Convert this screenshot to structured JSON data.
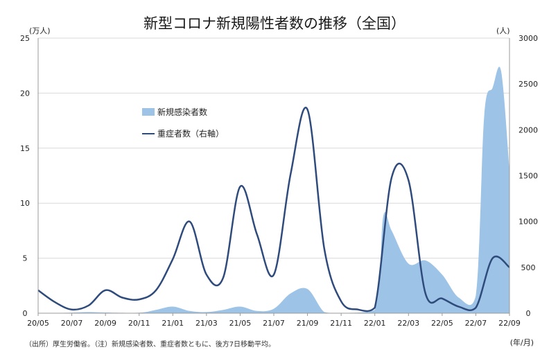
{
  "chart_data": {
    "type": "area",
    "title": "新型コロナ新規陽性者数の推移（全国）",
    "left_unit": "(万人)",
    "right_unit": "(人)",
    "x_unit": "(年/月)",
    "x_tick_labels": [
      "20/05",
      "20/07",
      "20/09",
      "20/11",
      "21/01",
      "21/03",
      "21/05",
      "21/07",
      "21/09",
      "21/11",
      "22/01",
      "22/03",
      "22/05",
      "22/07",
      "22/09"
    ],
    "y_left_ticks": [
      0,
      5,
      10,
      15,
      20,
      25
    ],
    "y_right_ticks": [
      0,
      500,
      1000,
      1500,
      2000,
      2500,
      3000
    ],
    "ylim_left": [
      0,
      25
    ],
    "ylim_right": [
      0,
      3000
    ],
    "grid": true,
    "colors": {
      "area": "#9dc3e6",
      "line": "#2f4b7c"
    },
    "series": [
      {
        "name": "新規感染者数",
        "axis": "left",
        "x": [
          "20/05",
          "20/07",
          "20/08",
          "20/09",
          "20/11",
          "20/12",
          "21/01",
          "21/02",
          "21/03",
          "21/04",
          "21/05",
          "21/06",
          "21/07",
          "21/08",
          "21/09",
          "21/10",
          "21/11",
          "22/01",
          "22/01",
          "22/02",
          "22/03",
          "22/04",
          "22/05",
          "22/06",
          "22/07",
          "22/07",
          "22/08",
          "22/08",
          "22/09"
        ],
        "values": [
          0.0,
          0.05,
          0.1,
          0.06,
          0.05,
          0.3,
          0.6,
          0.2,
          0.1,
          0.3,
          0.6,
          0.2,
          0.4,
          1.8,
          2.2,
          0.1,
          0.02,
          0.3,
          8.8,
          7.5,
          4.5,
          4.8,
          3.5,
          1.4,
          1.6,
          18.0,
          20.5,
          22.0,
          13.0
        ]
      },
      {
        "name": "重症者数（右軸）",
        "axis": "right",
        "x": [
          "20/05",
          "20/06",
          "20/07",
          "20/08",
          "20/09",
          "20/10",
          "20/11",
          "20/12",
          "21/01",
          "21/02",
          "21/03",
          "21/04",
          "21/05",
          "21/06",
          "21/07",
          "21/08",
          "21/09",
          "21/10",
          "21/11",
          "21/12",
          "22/01",
          "22/02",
          "22/03",
          "22/04",
          "22/05",
          "22/06",
          "22/07",
          "22/08",
          "22/09"
        ],
        "values": [
          250,
          120,
          40,
          85,
          250,
          170,
          150,
          250,
          590,
          1000,
          420,
          390,
          1380,
          860,
          420,
          1520,
          2220,
          700,
          130,
          40,
          60,
          1480,
          1450,
          220,
          160,
          70,
          60,
          600,
          500
        ]
      }
    ]
  },
  "legend": {
    "area_label": "新規感染者数",
    "line_label": "重症者数（右軸）"
  },
  "note": "（出所）厚生労働省。（注）新規感染者数、重症者数ともに、後方7日移動平均。"
}
